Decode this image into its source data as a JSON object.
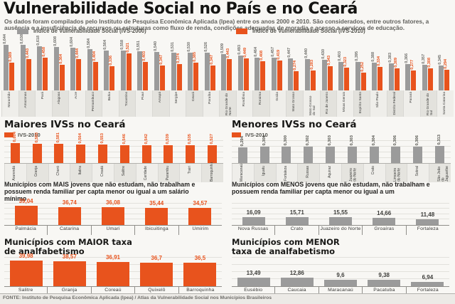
{
  "header": {
    "title": "Vulnerabilidade Social no País e no Ceará",
    "subtitle": "Os dados foram compilados pelo Instituto de Pesquisa Econômica Aplicada (Ipea) entre os anos 2000 e 2010. São considerados, entre outros fatores, a ausência e a insuficiência de recursos ou estruturas como fluxo de renda, condições adequadas de moradia e acesso a serviços de educação.",
    "legend": [
      {
        "label": "Índice de Vulnerabilidade Social (IVS-2000)",
        "color": "#9b9b9b"
      },
      {
        "label": "Índice de Vulnerabilidade Social (IVS-2010)",
        "color": "#e8531d"
      }
    ]
  },
  "colors": {
    "orange": "#e8531d",
    "gray": "#9b9b9b"
  },
  "chart_data": [
    {
      "id": "ivs-estados",
      "type": "bar",
      "categories": [
        "Maranhão",
        "Amazonas",
        "Pará",
        "Alagoas",
        "Acre",
        "Pernambuco",
        "Bahia",
        "Tocantins",
        "Piauí",
        "Amapá",
        "Sergipe",
        "Ceará",
        "Paraíba",
        "Rio Grande do Norte",
        "Rondônia",
        "Roraima",
        "Goiás",
        "Mato Grosso",
        "Mato Grosso do Sul",
        "Rio de Janeiro",
        "Minas Gerais",
        "Espírito Santo",
        "São Paulo",
        "Distrito Federal",
        "Paraná",
        "Rio Grande do Sul",
        "Santa Catarina"
      ],
      "series": [
        {
          "name": "IVS-2000",
          "color": "#9b9b9b",
          "values": [
            0.644,
            0.638,
            0.618,
            0.608,
            0.604,
            0.584,
            0.564,
            0.558,
            0.551,
            0.54,
            0.531,
            0.53,
            0.526,
            0.509,
            0.493,
            0.464,
            0.457,
            0.447,
            0.44,
            0.43,
            0.403,
            0.395,
            0.388,
            0.383,
            0.366,
            0.357,
            0.345
          ],
          "value_labels": [
            "0,644",
            "0,638",
            "0,618",
            "0,608",
            "0,604",
            "0,584",
            "0,564",
            "0,558",
            "0,551",
            "0,540",
            "0,531",
            "0,530",
            "0,526",
            "0,509",
            "0,493",
            "0,464",
            "0,457",
            "0,447",
            "0,440",
            "0,430",
            "0,403",
            "0,395",
            "0,388",
            "0,383",
            "0,366",
            "0,357",
            "0,345"
          ]
        },
        {
          "name": "IVS-2010",
          "color": "#e8531d",
          "values": [
            0.389,
            0.443,
            0.458,
            0.364,
            0.444,
            0.404,
            0.336,
            0.521,
            0.403,
            0.347,
            0.374,
            0.385,
            0.347,
            0.443,
            0.449,
            0.408,
            0.419,
            0.274,
            0.283,
            0.343,
            0.323,
            0.252,
            0.334,
            0.309,
            0.277,
            0.308,
            0.294
          ],
          "value_labels": [
            "0,389",
            "0,443",
            "0,458",
            "0,364",
            "0,444",
            "0,404",
            "0,336",
            "0,521",
            "0,403",
            "0,347",
            "0,374",
            "0,385",
            "0,347",
            "0,443",
            "0,449",
            "0,408",
            "0,419",
            "0,274",
            "0,283",
            "0,343",
            "0,323",
            "0,252",
            "0,334",
            "0,309",
            "0,277",
            "0,308",
            "0,294"
          ]
        }
      ],
      "ylim": [
        0,
        0.7
      ],
      "grid": false
    },
    {
      "id": "maiores-ivs-ceara",
      "type": "bar",
      "title": "Maiores IVSs no Ceará",
      "legend": "IVS-2010",
      "color": "#e8531d",
      "label_color": "#e8531d",
      "categories": [
        "Ararendá",
        "Granja",
        "Choró",
        "Itatira",
        "Croatá",
        "Salitre",
        "Caridade",
        "Parambu",
        "Trairi",
        "Barroquinha"
      ],
      "values": [
        0.604,
        0.583,
        0.581,
        0.564,
        0.553,
        0.546,
        0.542,
        0.539,
        0.535,
        0.527
      ],
      "value_labels": [
        "0,604",
        "0,583",
        "0,581",
        "0,564",
        "0,553",
        "0,546",
        "0,542",
        "0,539",
        "0,535",
        "0,527"
      ],
      "ylim": [
        0,
        0.68
      ],
      "grid": true
    },
    {
      "id": "menores-ivs-ceara",
      "type": "bar",
      "title": "Menores IVSs no Ceará",
      "legend": "IVS-2010",
      "color": "#9b9b9b",
      "label_color": "#55554f",
      "categories": [
        "Maracanaú",
        "Iguatu",
        "Fortaleza",
        "Russas",
        "Aquiraz",
        "Juazeiro do Norte",
        "Crato",
        "Limoeiro do Norte",
        "Sobral",
        "São João do Jaguaribe"
      ],
      "values": [
        0.294,
        0.3,
        0.3,
        0.302,
        0.303,
        0.303,
        0.304,
        0.306,
        0.306,
        0.313
      ],
      "value_labels": [
        "0,294",
        "0,300",
        "0,300",
        "0,302",
        "0,303",
        "0,303",
        "0,304",
        "0,306",
        "0,306",
        "0,313"
      ],
      "ylim": [
        0,
        0.42
      ],
      "grid": true
    },
    {
      "id": "mais-jovens",
      "type": "bar",
      "title": "Municípios com MAIS jovens que não estudam, não trabalham e possuem renda familiar per capta menor ou igual a um salário mínimo",
      "color": "#e8531d",
      "label_color": "#e8531d",
      "categories": [
        "Palmácia",
        "Catarina",
        "Umari",
        "Ibicuitinga",
        "Umirim"
      ],
      "values": [
        39.04,
        36.74,
        36.08,
        35.44,
        34.57
      ],
      "value_labels": [
        "39,04",
        "36,74",
        "36,08",
        "35,44",
        "34,57"
      ],
      "ylim": [
        0,
        44
      ],
      "grid": true
    },
    {
      "id": "menos-jovens",
      "type": "bar",
      "title": "Municípios com MENOS jovens que não estudam, não trabalham e possuem renda familiar per capta menor ou igual a um",
      "color": "#9b9b9b",
      "label_color": "#3d3d3a",
      "categories": [
        "Nova Russas",
        "Crato",
        "Juazeiro do Norte",
        "Groaíras",
        "Fortaleza"
      ],
      "values": [
        16.09,
        15.71,
        15.55,
        14.66,
        11.48
      ],
      "value_labels": [
        "16,09",
        "15,71",
        "15,55",
        "14,66",
        "11,48"
      ],
      "ylim": [
        0,
        44
      ],
      "grid": true
    },
    {
      "id": "maior-analfabetismo",
      "type": "bar",
      "title": "Municípios com MAIOR taxa de analfabetismo",
      "color": "#e8531d",
      "label_color": "#e8531d",
      "categories": [
        "Salitre",
        "Granja",
        "Coreaú",
        "Quixelô",
        "Barroquinha"
      ],
      "values": [
        39.98,
        38.57,
        36.91,
        36.7,
        36.5
      ],
      "value_labels": [
        "39,98",
        "38,57",
        "36,91",
        "36,7",
        "36,5"
      ],
      "ylim": [
        0,
        44
      ],
      "grid": true
    },
    {
      "id": "menor-analfabetismo",
      "type": "bar",
      "title": "Municípios com MENOR taxa de analfabetismo",
      "color": "#9b9b9b",
      "label_color": "#3d3d3a",
      "categories": [
        "Eusébio",
        "Caucaia",
        "Maracanaú",
        "Pacatuba",
        "Fortaleza"
      ],
      "values": [
        13.49,
        12.86,
        9.6,
        9.38,
        6.94
      ],
      "value_labels": [
        "13,49",
        "12,86",
        "9,6",
        "9,38",
        "6,94"
      ],
      "ylim": [
        0,
        44
      ],
      "grid": true
    }
  ],
  "footer": {
    "source": "FONTE: Instituto de Pesquisa Econômica Aplicada (Ipea) / Atlas da Vulnerabilidade Social nos Municípios Brasileiros"
  }
}
